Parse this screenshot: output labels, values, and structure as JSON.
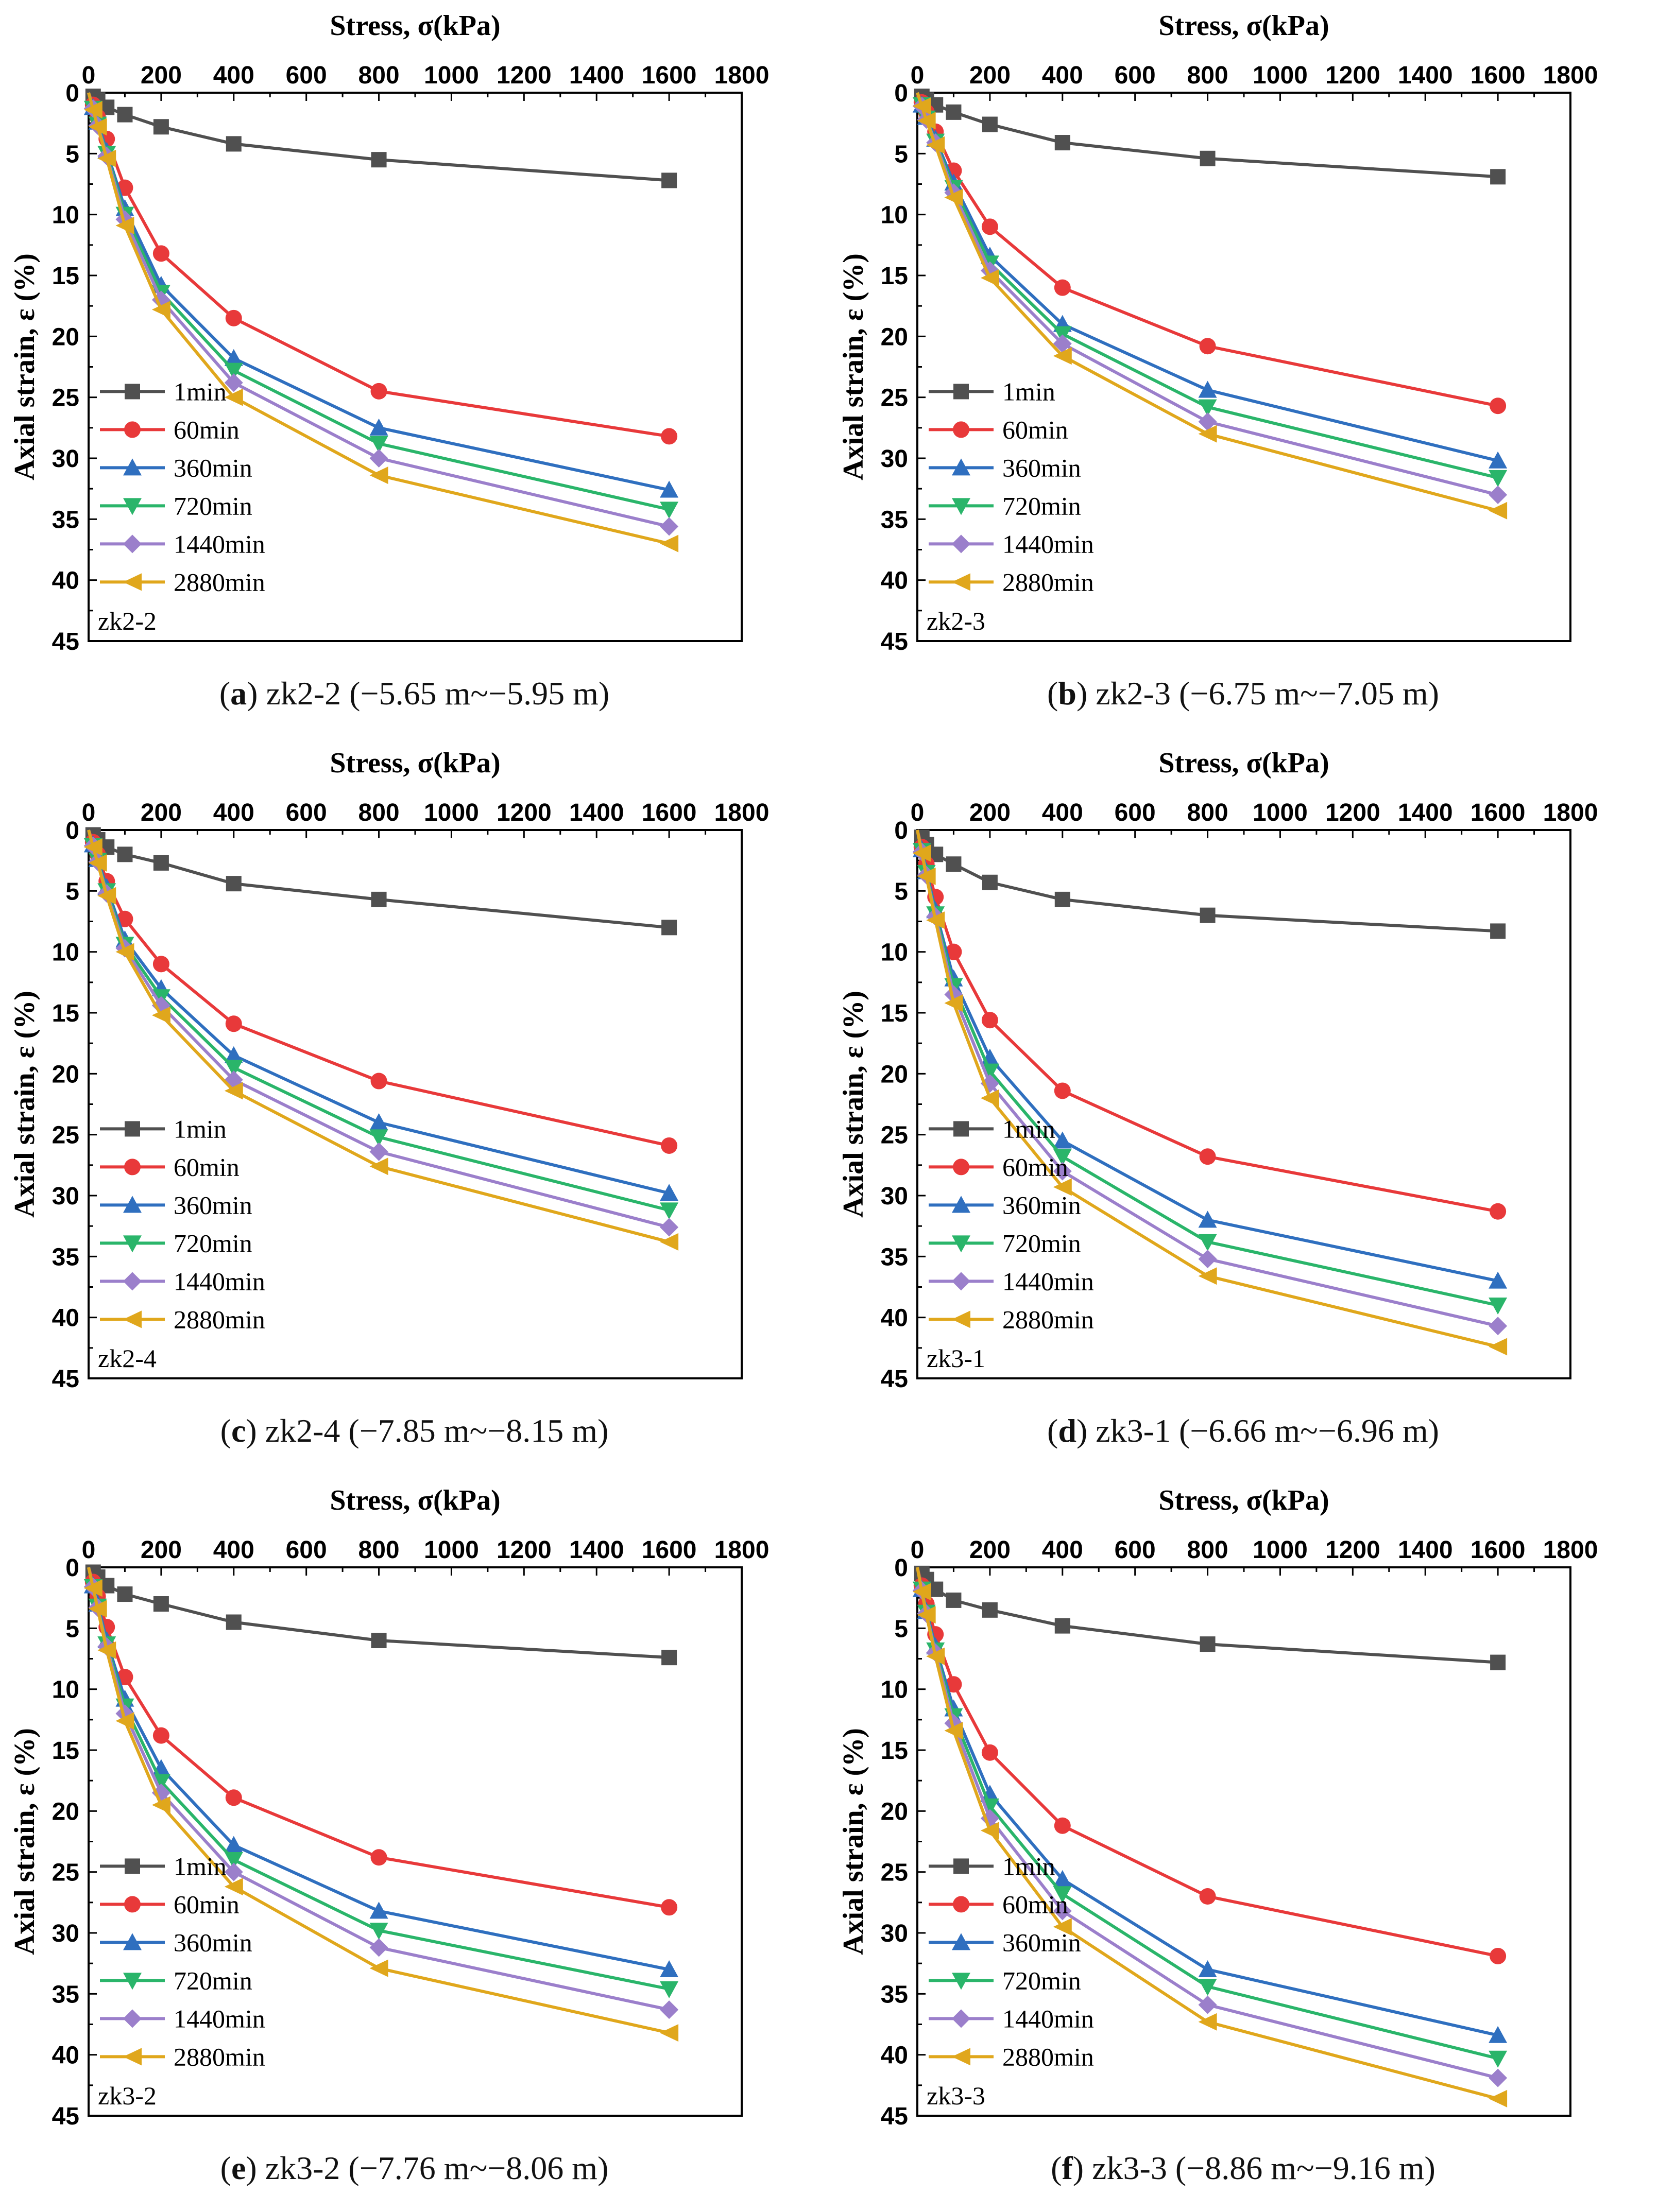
{
  "figure": {
    "colors": {
      "1min": "#505050",
      "60min": "#e8393a",
      "360min": "#2f6fbf",
      "720min": "#2ab56a",
      "1440min": "#9b7fcb",
      "2880min": "#e0a71c"
    }
  },
  "chart_data": [
    {
      "type": "line",
      "panel_letter": "a",
      "caption": "zk2-2 (−5.65 m~−5.95 m)",
      "tag": "zk2-2",
      "xlabel": "Stress, σ(kPa)",
      "ylabel": "Axial strain, ε (%)",
      "xlim": [
        0,
        1800
      ],
      "ylim": [
        0,
        45
      ],
      "x_axis_position": "top",
      "y_inverted": true,
      "legend_position": "bottom-left",
      "xticks": [
        "0",
        "200",
        "400",
        "600",
        "800",
        "1000",
        "1200",
        "1400",
        "1600",
        "1800"
      ],
      "yticks": [
        "0",
        "5",
        "10",
        "15",
        "20",
        "25",
        "30",
        "35",
        "40",
        "45"
      ],
      "x": [
        0,
        12.5,
        25,
        50,
        100,
        200,
        400,
        800,
        1600
      ],
      "series": [
        {
          "name": "1min",
          "marker": "square",
          "values": [
            0,
            0.3,
            0.6,
            1.2,
            1.8,
            2.8,
            4.2,
            5.5,
            7.2
          ]
        },
        {
          "name": "60min",
          "marker": "circle",
          "values": [
            0,
            1.0,
            2.0,
            3.8,
            7.8,
            13.2,
            18.5,
            24.5,
            28.2
          ]
        },
        {
          "name": "360min",
          "marker": "triangle-up",
          "values": [
            0,
            1.2,
            2.4,
            4.8,
            9.5,
            15.8,
            21.8,
            27.5,
            32.6
          ]
        },
        {
          "name": "720min",
          "marker": "triangle-down",
          "values": [
            0,
            1.3,
            2.6,
            5.0,
            10.0,
            16.4,
            22.8,
            28.8,
            34.2
          ]
        },
        {
          "name": "1440min",
          "marker": "diamond",
          "values": [
            0,
            1.3,
            2.7,
            5.2,
            10.4,
            17.0,
            23.8,
            30.0,
            35.6
          ]
        },
        {
          "name": "2880min",
          "marker": "triangle-left",
          "values": [
            0,
            1.4,
            2.8,
            5.4,
            10.9,
            17.8,
            25.0,
            31.4,
            37.0
          ]
        }
      ]
    },
    {
      "type": "line",
      "panel_letter": "b",
      "caption": "zk2-3 (−6.75 m~−7.05 m)",
      "tag": "zk2-3",
      "xlabel": "Stress, σ(kPa)",
      "ylabel": "Axial strain, ε (%)",
      "xlim": [
        0,
        1800
      ],
      "ylim": [
        0,
        45
      ],
      "x_axis_position": "top",
      "y_inverted": true,
      "legend_position": "bottom-left",
      "xticks": [
        "0",
        "200",
        "400",
        "600",
        "800",
        "1000",
        "1200",
        "1400",
        "1600",
        "1800"
      ],
      "yticks": [
        "0",
        "5",
        "10",
        "15",
        "20",
        "25",
        "30",
        "35",
        "40",
        "45"
      ],
      "x": [
        0,
        12.5,
        25,
        50,
        100,
        200,
        400,
        800,
        1600
      ],
      "series": [
        {
          "name": "1min",
          "marker": "square",
          "values": [
            0,
            0.3,
            0.6,
            1.0,
            1.6,
            2.6,
            4.1,
            5.4,
            6.9
          ]
        },
        {
          "name": "60min",
          "marker": "circle",
          "values": [
            0,
            0.8,
            1.6,
            3.2,
            6.4,
            11.0,
            16.0,
            20.8,
            25.7
          ]
        },
        {
          "name": "360min",
          "marker": "triangle-up",
          "values": [
            0,
            1.0,
            2.0,
            3.8,
            7.4,
            13.4,
            19.0,
            24.4,
            30.2
          ]
        },
        {
          "name": "720min",
          "marker": "triangle-down",
          "values": [
            0,
            1.0,
            2.1,
            4.0,
            7.8,
            14.0,
            19.8,
            25.8,
            31.6
          ]
        },
        {
          "name": "1440min",
          "marker": "diamond",
          "values": [
            0,
            1.1,
            2.2,
            4.1,
            8.2,
            14.6,
            20.6,
            27.0,
            33.0
          ]
        },
        {
          "name": "2880min",
          "marker": "triangle-left",
          "values": [
            0,
            1.1,
            2.3,
            4.3,
            8.6,
            15.2,
            21.6,
            28.0,
            34.3
          ]
        }
      ]
    },
    {
      "type": "line",
      "panel_letter": "c",
      "caption": "zk2-4 (−7.85 m~−8.15 m)",
      "tag": "zk2-4",
      "xlabel": "Stress, σ(kPa)",
      "ylabel": "Axial strain, ε (%)",
      "xlim": [
        0,
        1800
      ],
      "ylim": [
        0,
        45
      ],
      "x_axis_position": "top",
      "y_inverted": true,
      "legend_position": "bottom-left",
      "xticks": [
        "0",
        "200",
        "400",
        "600",
        "800",
        "1000",
        "1200",
        "1400",
        "1600",
        "1800"
      ],
      "yticks": [
        "0",
        "5",
        "10",
        "15",
        "20",
        "25",
        "30",
        "35",
        "40",
        "45"
      ],
      "x": [
        0,
        12.5,
        25,
        50,
        100,
        200,
        400,
        800,
        1600
      ],
      "series": [
        {
          "name": "1min",
          "marker": "square",
          "values": [
            0,
            0.4,
            0.8,
            1.4,
            2.0,
            2.7,
            4.4,
            5.7,
            8.0
          ]
        },
        {
          "name": "60min",
          "marker": "circle",
          "values": [
            0,
            1.0,
            2.0,
            4.2,
            7.3,
            11.0,
            15.9,
            20.6,
            25.9
          ]
        },
        {
          "name": "360min",
          "marker": "triangle-up",
          "values": [
            0,
            1.2,
            2.4,
            4.7,
            9.0,
            13.0,
            18.5,
            24.0,
            29.8
          ]
        },
        {
          "name": "720min",
          "marker": "triangle-down",
          "values": [
            0,
            1.3,
            2.5,
            5.0,
            9.4,
            13.7,
            19.5,
            25.2,
            31.2
          ]
        },
        {
          "name": "1440min",
          "marker": "diamond",
          "values": [
            0,
            1.3,
            2.6,
            5.2,
            9.7,
            14.4,
            20.5,
            26.4,
            32.6
          ]
        },
        {
          "name": "2880min",
          "marker": "triangle-left",
          "values": [
            0,
            1.4,
            2.7,
            5.4,
            10.0,
            15.2,
            21.4,
            27.6,
            33.8
          ]
        }
      ]
    },
    {
      "type": "line",
      "panel_letter": "d",
      "caption": "zk3-1 (−6.66 m~−6.96 m)",
      "tag": "zk3-1",
      "xlabel": "Stress, σ(kPa)",
      "ylabel": "Axial strain, ε (%)",
      "xlim": [
        0,
        1800
      ],
      "ylim": [
        0,
        45
      ],
      "x_axis_position": "top",
      "y_inverted": true,
      "legend_position": "bottom-left",
      "xticks": [
        "0",
        "200",
        "400",
        "600",
        "800",
        "1000",
        "1200",
        "1400",
        "1600",
        "1800"
      ],
      "yticks": [
        "0",
        "5",
        "10",
        "15",
        "20",
        "25",
        "30",
        "35",
        "40",
        "45"
      ],
      "x": [
        0,
        12.5,
        25,
        50,
        100,
        200,
        400,
        800,
        1600
      ],
      "series": [
        {
          "name": "1min",
          "marker": "square",
          "values": [
            0,
            0.6,
            1.2,
            2.0,
            2.8,
            4.3,
            5.7,
            7.0,
            8.3
          ]
        },
        {
          "name": "60min",
          "marker": "circle",
          "values": [
            0,
            1.4,
            2.8,
            5.5,
            10.0,
            15.6,
            21.4,
            26.8,
            31.3
          ]
        },
        {
          "name": "360min",
          "marker": "triangle-up",
          "values": [
            0,
            1.6,
            3.4,
            6.6,
            12.2,
            18.7,
            25.5,
            32.0,
            37.0
          ]
        },
        {
          "name": "720min",
          "marker": "triangle-down",
          "values": [
            0,
            1.7,
            3.5,
            6.9,
            12.8,
            19.8,
            26.8,
            33.8,
            39.0
          ]
        },
        {
          "name": "1440min",
          "marker": "diamond",
          "values": [
            0,
            1.8,
            3.7,
            7.1,
            13.5,
            20.8,
            28.0,
            35.2,
            40.7
          ]
        },
        {
          "name": "2880min",
          "marker": "triangle-left",
          "values": [
            0,
            1.9,
            3.8,
            7.4,
            14.2,
            22.0,
            29.3,
            36.6,
            42.4
          ]
        }
      ]
    },
    {
      "type": "line",
      "panel_letter": "e",
      "caption": "zk3-2 (−7.76 m~−8.06 m)",
      "tag": "zk3-2",
      "xlabel": "Stress, σ(kPa)",
      "ylabel": "Axial strain, ε (%)",
      "xlim": [
        0,
        1800
      ],
      "ylim": [
        0,
        45
      ],
      "x_axis_position": "top",
      "y_inverted": true,
      "legend_position": "bottom-left",
      "xticks": [
        "0",
        "200",
        "400",
        "600",
        "800",
        "1000",
        "1200",
        "1400",
        "1600",
        "1800"
      ],
      "yticks": [
        "0",
        "5",
        "10",
        "15",
        "20",
        "25",
        "30",
        "35",
        "40",
        "45"
      ],
      "x": [
        0,
        12.5,
        25,
        50,
        100,
        200,
        400,
        800,
        1600
      ],
      "series": [
        {
          "name": "1min",
          "marker": "square",
          "values": [
            0,
            0.4,
            0.8,
            1.5,
            2.2,
            3.0,
            4.5,
            6.0,
            7.4
          ]
        },
        {
          "name": "60min",
          "marker": "circle",
          "values": [
            0,
            1.2,
            2.4,
            4.9,
            9.0,
            13.8,
            18.9,
            23.8,
            27.9
          ]
        },
        {
          "name": "360min",
          "marker": "triangle-up",
          "values": [
            0,
            1.5,
            3.0,
            6.0,
            10.8,
            16.5,
            22.8,
            28.2,
            33.0
          ]
        },
        {
          "name": "720min",
          "marker": "triangle-down",
          "values": [
            0,
            1.6,
            3.2,
            6.3,
            11.4,
            17.6,
            24.0,
            29.8,
            34.6
          ]
        },
        {
          "name": "1440min",
          "marker": "diamond",
          "values": [
            0,
            1.6,
            3.3,
            6.5,
            12.0,
            18.5,
            25.0,
            31.2,
            36.3
          ]
        },
        {
          "name": "2880min",
          "marker": "triangle-left",
          "values": [
            0,
            1.7,
            3.4,
            6.8,
            12.6,
            19.5,
            26.2,
            32.9,
            38.2
          ]
        }
      ]
    },
    {
      "type": "line",
      "panel_letter": "f",
      "caption": "zk3-3 (−8.86 m~−9.16 m)",
      "tag": "zk3-3",
      "xlabel": "Stress, σ(kPa)",
      "ylabel": "Axial strain, ε (%)",
      "xlim": [
        0,
        1800
      ],
      "ylim": [
        0,
        45
      ],
      "x_axis_position": "top",
      "y_inverted": true,
      "legend_position": "bottom-left",
      "xticks": [
        "0",
        "200",
        "400",
        "600",
        "800",
        "1000",
        "1200",
        "1400",
        "1600",
        "1800"
      ],
      "yticks": [
        "0",
        "5",
        "10",
        "15",
        "20",
        "25",
        "30",
        "35",
        "40",
        "45"
      ],
      "x": [
        0,
        12.5,
        25,
        50,
        100,
        200,
        400,
        800,
        1600
      ],
      "series": [
        {
          "name": "1min",
          "marker": "square",
          "values": [
            0,
            0.5,
            1.0,
            1.8,
            2.7,
            3.5,
            4.8,
            6.3,
            7.8
          ]
        },
        {
          "name": "60min",
          "marker": "circle",
          "values": [
            0,
            1.5,
            3.0,
            5.5,
            9.6,
            15.2,
            21.2,
            27.0,
            31.9
          ]
        },
        {
          "name": "360min",
          "marker": "triangle-up",
          "values": [
            0,
            1.8,
            3.6,
            6.5,
            11.6,
            18.6,
            25.6,
            33.0,
            38.4
          ]
        },
        {
          "name": "720min",
          "marker": "triangle-down",
          "values": [
            0,
            1.8,
            3.7,
            6.8,
            12.2,
            19.6,
            26.8,
            34.4,
            40.3
          ]
        },
        {
          "name": "1440min",
          "marker": "diamond",
          "values": [
            0,
            1.9,
            3.8,
            7.0,
            12.8,
            20.6,
            28.2,
            35.9,
            41.9
          ]
        },
        {
          "name": "2880min",
          "marker": "triangle-left",
          "values": [
            0,
            2.0,
            3.9,
            7.3,
            13.4,
            21.6,
            29.5,
            37.3,
            43.6
          ]
        }
      ]
    }
  ]
}
